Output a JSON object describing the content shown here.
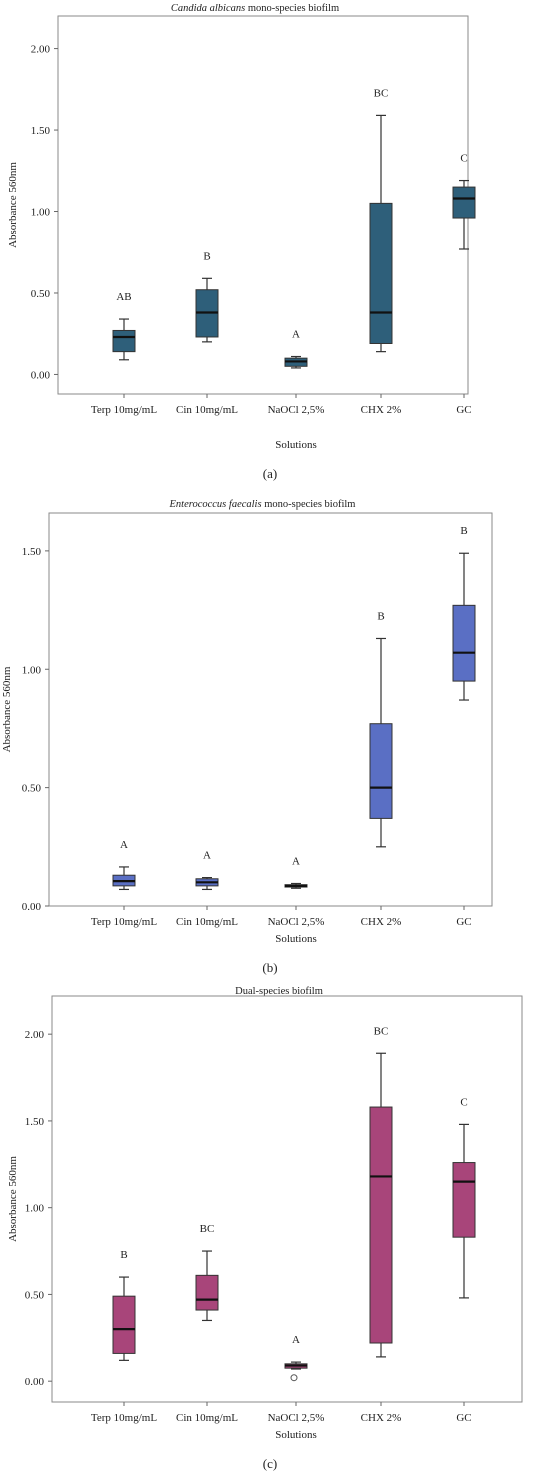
{
  "chart_data": [
    {
      "type": "box",
      "title_italic": "Candida albicans",
      "title_rest": " mono-species biofilm",
      "panel_label": "(a)",
      "xlabel": "Solutions",
      "ylabel": "Absorbance 560nm",
      "ylim": [
        -0.12,
        2.2
      ],
      "yticks": [
        0.0,
        0.5,
        1.0,
        1.5,
        2.0
      ],
      "ytick_labels": [
        "0.00",
        "0.50",
        "1.00",
        "1.50",
        "2.00"
      ],
      "color": "#2e5f7a",
      "categories": [
        "Terp 10mg/mL",
        "Cin 10mg/mL",
        "NaOCl 2,5%",
        "CHX 2%",
        "GC"
      ],
      "boxes": [
        {
          "min": 0.09,
          "q1": 0.14,
          "median": 0.23,
          "q3": 0.27,
          "max": 0.34,
          "letter": "AB"
        },
        {
          "min": 0.2,
          "q1": 0.23,
          "median": 0.38,
          "q3": 0.52,
          "max": 0.59,
          "letter": "B"
        },
        {
          "min": 0.04,
          "q1": 0.05,
          "median": 0.08,
          "q3": 0.1,
          "max": 0.11,
          "letter": "A"
        },
        {
          "min": 0.14,
          "q1": 0.19,
          "median": 0.38,
          "q3": 1.05,
          "max": 1.59,
          "letter": "BC"
        },
        {
          "min": 0.77,
          "q1": 0.96,
          "median": 1.08,
          "q3": 1.15,
          "max": 1.19,
          "letter": "C"
        }
      ],
      "outliers": []
    },
    {
      "type": "box",
      "title_italic": "Enterococcus faecalis",
      "title_rest": " mono-species biofilm",
      "panel_label": "(b)",
      "xlabel": "Solutions",
      "ylabel": "Absorbance 560nm",
      "ylim": [
        0.0,
        1.66
      ],
      "yticks": [
        0.0,
        0.5,
        1.0,
        1.5
      ],
      "ytick_labels": [
        "0.00",
        "0.50",
        "1.00",
        "1.50"
      ],
      "color": "#5a6fc4",
      "categories": [
        "Terp 10mg/mL",
        "Cin 10mg/mL",
        "NaOCl 2,5%",
        "CHX 2%",
        "GC"
      ],
      "boxes": [
        {
          "min": 0.07,
          "q1": 0.085,
          "median": 0.105,
          "q3": 0.13,
          "max": 0.165,
          "letter": "A"
        },
        {
          "min": 0.07,
          "q1": 0.085,
          "median": 0.1,
          "q3": 0.115,
          "max": 0.12,
          "letter": "A"
        },
        {
          "min": 0.075,
          "q1": 0.08,
          "median": 0.085,
          "q3": 0.09,
          "max": 0.095,
          "letter": "A"
        },
        {
          "min": 0.25,
          "q1": 0.37,
          "median": 0.5,
          "q3": 0.77,
          "max": 1.13,
          "letter": "B"
        },
        {
          "min": 0.87,
          "q1": 0.95,
          "median": 1.07,
          "q3": 1.27,
          "max": 1.49,
          "letter": "B"
        }
      ],
      "outliers": []
    },
    {
      "type": "box",
      "title_italic": "",
      "title_rest": "Dual-species biofilm",
      "panel_label": "(c)",
      "xlabel": "Solutions",
      "ylabel": "Absorbance 560nm",
      "ylim": [
        -0.12,
        2.22
      ],
      "yticks": [
        0.0,
        0.5,
        1.0,
        1.5,
        2.0
      ],
      "ytick_labels": [
        "0.00",
        "0.50",
        "1.00",
        "1.50",
        "2.00"
      ],
      "color": "#a8457a",
      "categories": [
        "Terp 10mg/mL",
        "Cin 10mg/mL",
        "NaOCl 2,5%",
        "CHX 2%",
        "GC"
      ],
      "boxes": [
        {
          "min": 0.12,
          "q1": 0.16,
          "median": 0.3,
          "q3": 0.49,
          "max": 0.6,
          "letter": "B"
        },
        {
          "min": 0.35,
          "q1": 0.41,
          "median": 0.47,
          "q3": 0.61,
          "max": 0.75,
          "letter": "BC"
        },
        {
          "min": 0.07,
          "q1": 0.075,
          "median": 0.09,
          "q3": 0.1,
          "max": 0.11,
          "letter": "A"
        },
        {
          "min": 0.14,
          "q1": 0.22,
          "median": 1.18,
          "q3": 1.58,
          "max": 1.89,
          "letter": "BC"
        },
        {
          "min": 0.48,
          "q1": 0.83,
          "median": 1.15,
          "q3": 1.26,
          "max": 1.48,
          "letter": "C"
        }
      ],
      "outliers": [
        {
          "category": "NaOCl 2,5%",
          "value": 0.02
        }
      ]
    }
  ]
}
